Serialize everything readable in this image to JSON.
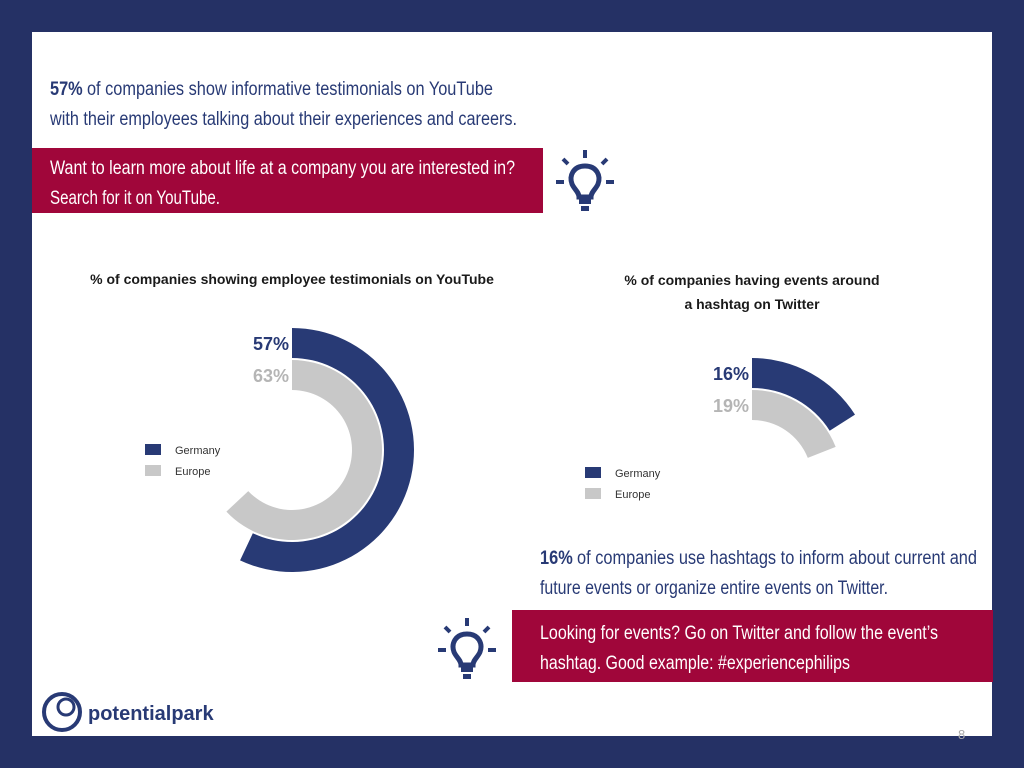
{
  "headline": {
    "highlight": "57%",
    "lines": [
      "of companies show informative testimonials on YouTube",
      "with their employees talking about their experiences and careers."
    ]
  },
  "tip1": {
    "lines": [
      "Want to learn more about life at a company you are interested in?",
      "Search for it on YouTube."
    ]
  },
  "statement2": {
    "highlight": "16%",
    "lines": [
      "of companies use hashtags to inform about current and",
      "future events or organize entire events on Twitter."
    ]
  },
  "tip2": {
    "lines": [
      "Looking for events? Go on Twitter and follow the event’s",
      "hashtag. Good example: #experiencephilips"
    ]
  },
  "logo": "potentialpark",
  "page_number": "8",
  "chart_data": [
    {
      "type": "radial-bar",
      "title": [
        "% of companies showing employee testimonials on YouTube"
      ],
      "ylim": [
        0,
        100
      ],
      "series": [
        {
          "name": "Germany",
          "color": "#283a75",
          "values": [
            57
          ],
          "value_labels": [
            "57%"
          ]
        },
        {
          "name": "Europe",
          "color": "#c8c8c8",
          "values": [
            63
          ],
          "value_labels": [
            "63%"
          ]
        }
      ]
    },
    {
      "type": "radial-bar",
      "title": [
        "% of companies having events around",
        "a hashtag on Twitter"
      ],
      "ylim": [
        0,
        100
      ],
      "series": [
        {
          "name": "Germany",
          "color": "#283a75",
          "values": [
            16
          ],
          "value_labels": [
            "16%"
          ]
        },
        {
          "name": "Europe",
          "color": "#c8c8c8",
          "values": [
            19
          ],
          "value_labels": [
            "19%"
          ]
        }
      ]
    }
  ]
}
